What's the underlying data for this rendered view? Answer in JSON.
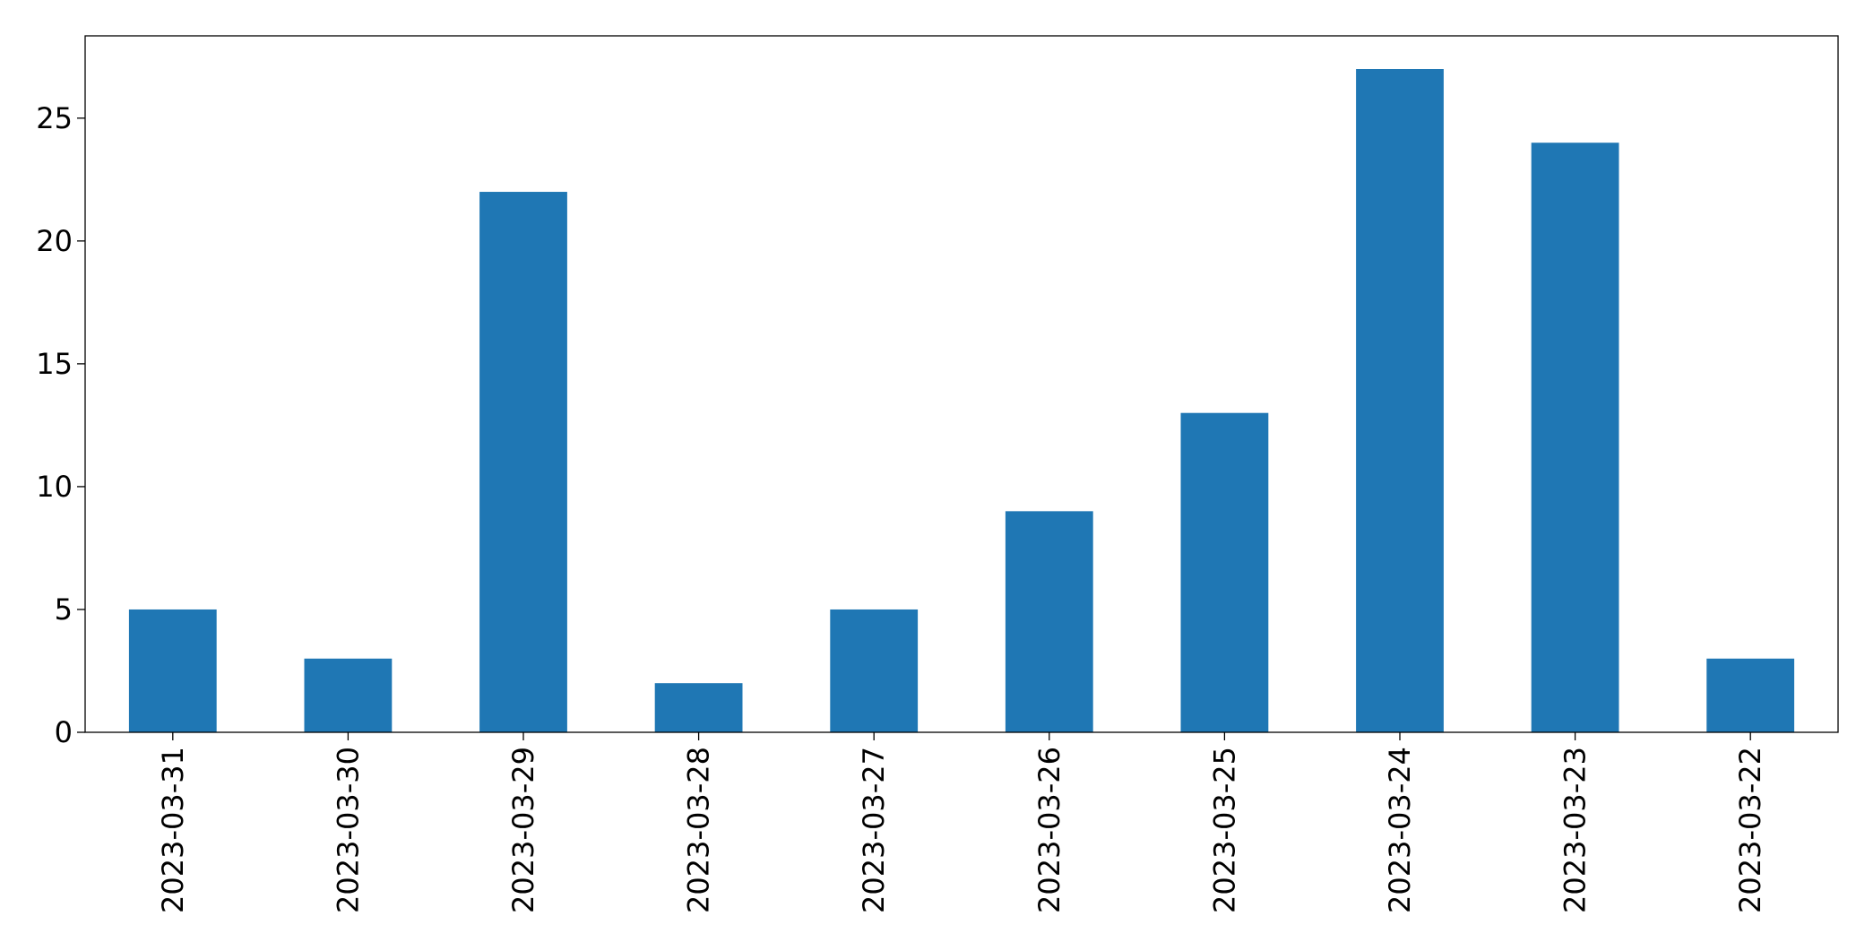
{
  "chart_data": {
    "type": "bar",
    "categories": [
      "2023-03-31",
      "2023-03-30",
      "2023-03-29",
      "2023-03-28",
      "2023-03-27",
      "2023-03-26",
      "2023-03-25",
      "2023-03-24",
      "2023-03-23",
      "2023-03-22"
    ],
    "values": [
      5,
      3,
      22,
      2,
      5,
      9,
      13,
      27,
      24,
      3
    ],
    "color": "#1f77b4",
    "ylim": [
      0,
      28.35
    ],
    "yticks": [
      0,
      5,
      10,
      15,
      20,
      25
    ],
    "grid": false
  }
}
